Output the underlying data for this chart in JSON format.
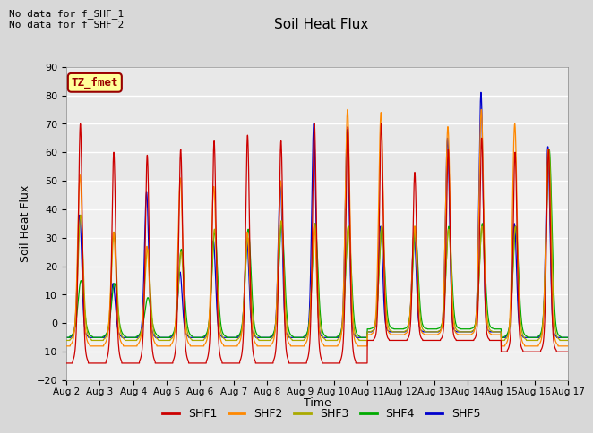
{
  "title": "Soil Heat Flux",
  "ylabel": "Soil Heat Flux",
  "xlabel": "Time",
  "ylim": [
    -20,
    90
  ],
  "yticks": [
    -20,
    -10,
    0,
    10,
    20,
    30,
    40,
    50,
    60,
    70,
    80,
    90
  ],
  "annotation_top": "No data for f_SHF_1\nNo data for f_SHF_2",
  "legend_label": "TZ_fmet",
  "legend_box_color": "#ffff99",
  "legend_box_edge": "#990000",
  "series_names": [
    "SHF1",
    "SHF2",
    "SHF3",
    "SHF4",
    "SHF5"
  ],
  "series_colors": [
    "#cc0000",
    "#ff8800",
    "#aaaa00",
    "#00aa00",
    "#0000cc"
  ],
  "n_days": 15,
  "background_color": "#d8d8d8",
  "plot_bg_color_upper": "#e8e8e8",
  "plot_bg_color_lower": "#f0f0f0",
  "grid_color": "#ffffff",
  "xtick_labels": [
    "Aug 2",
    "Aug 3",
    "Aug 4",
    "Aug 5",
    "Aug 6",
    "Aug 7",
    "Aug 8",
    "Aug 9",
    "Aug 10",
    "Aug 11",
    "Aug 12",
    "Aug 13",
    "Aug 14",
    "Aug 15",
    "Aug 16",
    "Aug 17"
  ],
  "day_peaks_shf1": [
    70,
    60,
    59,
    61,
    64,
    66,
    64,
    70,
    69,
    70,
    53,
    61,
    65,
    60,
    61
  ],
  "day_peaks_shf2": [
    52,
    32,
    27,
    51,
    48,
    32,
    50,
    34,
    75,
    74,
    34,
    69,
    75,
    70,
    61
  ],
  "day_peaks_shf3": [
    38,
    32,
    26,
    25,
    33,
    30,
    36,
    35,
    34,
    34,
    34,
    33,
    34,
    34,
    61
  ],
  "day_peaks_shf4": [
    15,
    14,
    9,
    26,
    32,
    33,
    35,
    35,
    34,
    34,
    32,
    34,
    35,
    34,
    61
  ],
  "day_peaks_shf5": [
    38,
    14,
    46,
    18,
    29,
    29,
    50,
    70,
    68,
    34,
    32,
    65,
    81,
    35,
    62
  ],
  "day_troughs_shf1": [
    -14,
    -14,
    -14,
    -14,
    -14,
    -14,
    -14,
    -14,
    -14,
    -6,
    -6,
    -6,
    -6,
    -10,
    -10
  ],
  "day_troughs_shf2": [
    -8,
    -8,
    -8,
    -8,
    -8,
    -8,
    -8,
    -8,
    -8,
    -4,
    -4,
    -4,
    -4,
    -8,
    -8
  ],
  "day_troughs_shf3": [
    -6,
    -6,
    -6,
    -6,
    -6,
    -6,
    -6,
    -6,
    -6,
    -3,
    -3,
    -3,
    -3,
    -6,
    -6
  ],
  "day_troughs_shf4": [
    -5,
    -5,
    -5,
    -5,
    -5,
    -5,
    -5,
    -5,
    -5,
    -2,
    -2,
    -2,
    -2,
    -5,
    -5
  ],
  "day_troughs_shf5": [
    -5,
    -5,
    -5,
    -5,
    -5,
    -5,
    -5,
    -5,
    -5,
    -3,
    -3,
    -3,
    -3,
    -5,
    -5
  ]
}
